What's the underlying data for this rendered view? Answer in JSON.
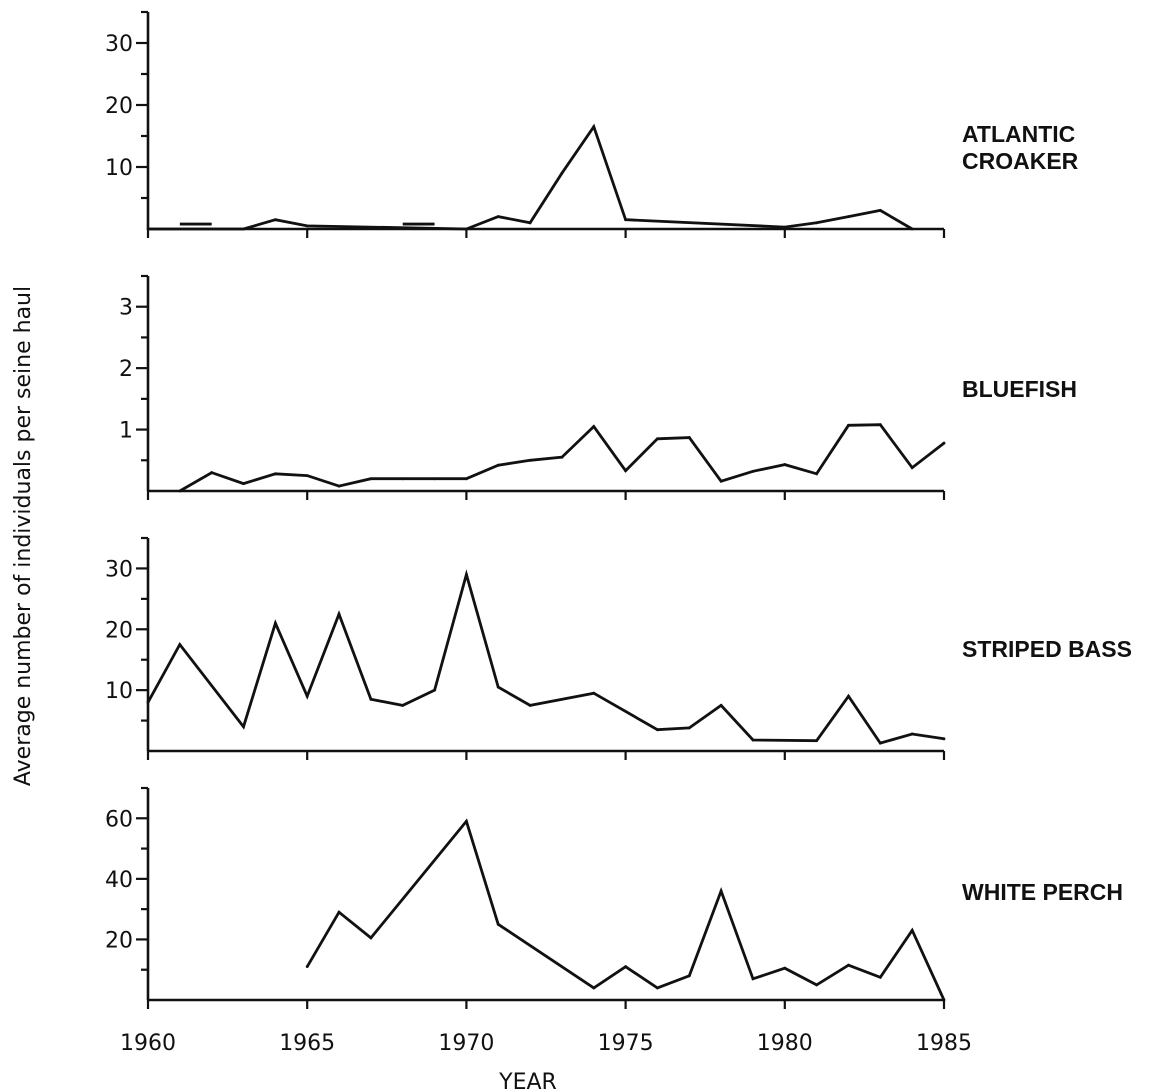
{
  "chart_data": {
    "type": "line",
    "xlabel": "YEAR",
    "ylabel": "Average number of individuals per seine haul",
    "xlim": [
      1960,
      1985
    ],
    "x_ticks": [
      1960,
      1965,
      1970,
      1975,
      1980,
      1985
    ],
    "panels": [
      {
        "label": [
          "ATLANTIC",
          "CROAKER"
        ],
        "ylim": [
          0,
          35
        ],
        "y_major_ticks": [
          10,
          20,
          30
        ],
        "y_minor_ticks": [
          5,
          15,
          25,
          35
        ],
        "series": [
          {
            "x": [
              1960,
              1963,
              1964,
              1965,
              1970,
              1971,
              1972,
              1973,
              1974,
              1975,
              1980,
              1981,
              1982,
              1983,
              1984
            ],
            "y": [
              0,
              0,
              1.5,
              0.5,
              0,
              2,
              1,
              9,
              16.5,
              1.5,
              0.3,
              1,
              2,
              3,
              0
            ]
          }
        ],
        "bars": [
          {
            "x0": 1961,
            "x1": 1962,
            "y": 0.8
          },
          {
            "x0": 1968,
            "x1": 1969,
            "y": 0.8
          }
        ]
      },
      {
        "label": [
          "BLUEFISH"
        ],
        "ylim": [
          0,
          3.5
        ],
        "y_major_ticks": [
          1,
          2,
          3
        ],
        "y_minor_ticks": [
          0.5,
          1.5,
          2.5,
          3.5
        ],
        "series": [
          {
            "x": [
              1961,
              1962,
              1963,
              1964,
              1965,
              1966,
              1967,
              1968,
              1969,
              1970,
              1971,
              1972,
              1973,
              1974,
              1975,
              1976,
              1977,
              1978,
              1979,
              1980,
              1981,
              1982,
              1983,
              1984,
              1985
            ],
            "y": [
              0,
              0.3,
              0.12,
              0.28,
              0.25,
              0.08,
              0.2,
              0.2,
              0.2,
              0.2,
              0.42,
              0.5,
              0.55,
              1.05,
              0.33,
              0.85,
              0.87,
              0.16,
              0.32,
              0.43,
              0.28,
              1.07,
              1.08,
              0.38,
              0.78
            ]
          }
        ]
      },
      {
        "label": [
          "STRIPED BASS"
        ],
        "ylim": [
          0,
          35
        ],
        "y_major_ticks": [
          10,
          20,
          30
        ],
        "y_minor_ticks": [
          5,
          15,
          25,
          35
        ],
        "series": [
          {
            "x": [
              1960,
              1961,
              1963,
              1964,
              1965,
              1966,
              1967,
              1968,
              1969,
              1970,
              1971,
              1972,
              1974,
              1976,
              1977,
              1978,
              1979,
              1981,
              1982,
              1983,
              1984,
              1985
            ],
            "y": [
              8,
              17.5,
              4,
              21,
              9,
              22.5,
              8.5,
              7.5,
              10,
              29,
              10.5,
              7.5,
              9.5,
              3.5,
              3.8,
              7.5,
              1.8,
              1.7,
              9,
              1.3,
              2.8,
              2
            ]
          }
        ]
      },
      {
        "label": [
          "WHITE PERCH"
        ],
        "ylim": [
          0,
          70
        ],
        "y_major_ticks": [
          20,
          40,
          60
        ],
        "y_minor_ticks": [
          10,
          30,
          50,
          70
        ],
        "series": [
          {
            "x": [
              1965,
              1966,
              1967,
              1970,
              1971,
              1974,
              1975,
              1976,
              1977,
              1978,
              1979,
              1980,
              1981,
              1982,
              1983,
              1984,
              1985
            ],
            "y": [
              11,
              29,
              20.5,
              59,
              25,
              4,
              11,
              4,
              8,
              36,
              7,
              10.5,
              5,
              11.5,
              7.5,
              23,
              0
            ]
          }
        ]
      }
    ]
  }
}
